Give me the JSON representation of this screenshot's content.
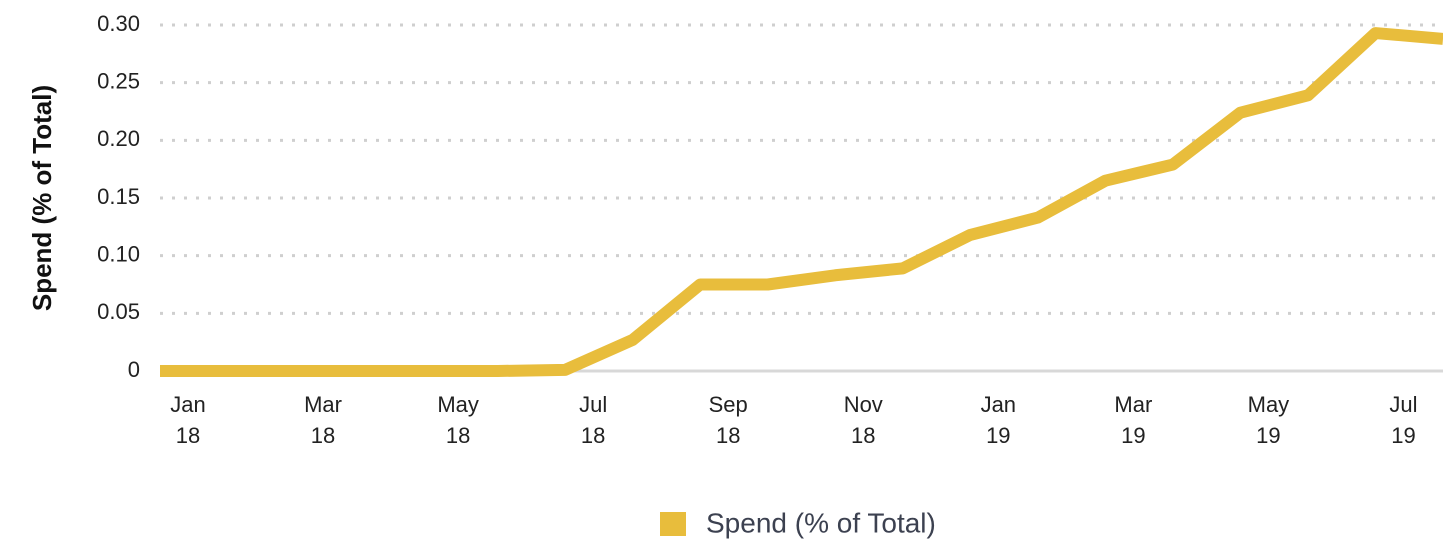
{
  "chart_data": {
    "type": "line",
    "ylabel": "Spend (% of Total)",
    "categories": [
      "Jan 18",
      null,
      "Mar 18",
      null,
      "May 18",
      null,
      "Jul 18",
      null,
      "Sep 18",
      null,
      "Nov 18",
      null,
      "Jan 19",
      null,
      "Mar 19",
      null,
      "May 19",
      null,
      "Jul 19",
      null
    ],
    "series": [
      {
        "name": "Spend (% of Total)",
        "color": "#e8bd3c",
        "values": [
          0,
          0,
          0,
          0,
          0,
          0,
          0.001,
          0.027,
          0.075,
          0.075,
          0.083,
          0.089,
          0.118,
          0.133,
          0.165,
          0.179,
          0.224,
          0.239,
          0.293,
          0.288
        ]
      }
    ],
    "ylim": [
      0,
      0.3
    ],
    "yticks": [
      0,
      0.05,
      {
        "value": 0.1,
        "label": "0.10"
      },
      0.15,
      {
        "value": 0.2,
        "label": "0.20"
      },
      0.25,
      {
        "value": 0.3,
        "label": "0.30"
      }
    ],
    "grid": true,
    "legend": "bottom"
  }
}
